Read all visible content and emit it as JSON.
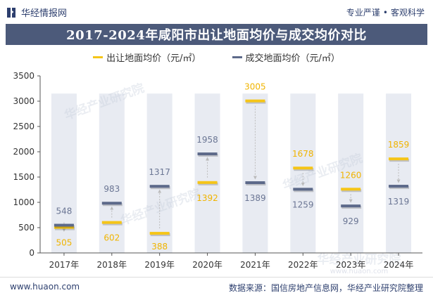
{
  "header": {
    "brand": "华经情报网",
    "tagline": [
      "专业严谨",
      "客观科学"
    ]
  },
  "title": "2017-2024年咸阳市出让地面均价与成交均价对比",
  "footer": {
    "website": "www.huaon.com",
    "source": "数据来源：国信房地产信息网，华经产业研究院整理"
  },
  "watermark": "华经产业研究院",
  "watermark_url": "www.huaon.com",
  "colors": {
    "title_bg": "#4c5a7a",
    "brand": "#2d3f6e",
    "column_bg": "#e8ebf2",
    "series_1": "#f5c518",
    "series_2": "#5d6a8a",
    "label_1": "#f0b400",
    "label_2": "#6b7694",
    "arrow": "#bbbbbb"
  },
  "chart_data": {
    "type": "line",
    "categories": [
      "2017年",
      "2018年",
      "2019年",
      "2020年",
      "2021年",
      "2022年",
      "2023年",
      "2024年"
    ],
    "series": [
      {
        "name": "出让地面均价（元/㎡）",
        "values": [
          505,
          602,
          388,
          1392,
          3005,
          1678,
          1260,
          1859
        ]
      },
      {
        "name": "成交地面均价（元/㎡）",
        "values": [
          548,
          983,
          1317,
          1958,
          1389,
          1259,
          929,
          1319
        ]
      }
    ],
    "ylim": [
      0,
      3500
    ],
    "yticks": [
      0,
      500,
      1000,
      1500,
      2000,
      2500,
      3000,
      3500
    ],
    "xlabel": "",
    "ylabel": "",
    "legend_position": "top",
    "grid": false
  }
}
